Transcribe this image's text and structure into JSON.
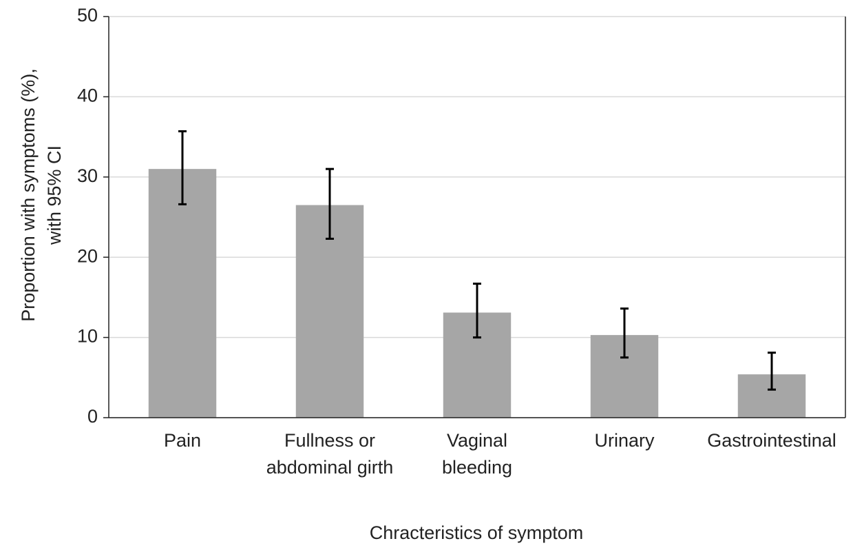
{
  "chart_data": {
    "type": "bar",
    "x_label": "Chracteristics of symptom",
    "y_label": [
      "Proportion with symptoms (%),",
      "with 95% CI"
    ],
    "categories": [
      "Pain",
      "Fullness or abdominal girth",
      "Vaginal bleeding",
      "Urinary",
      "Gastrointestinal"
    ],
    "values": [
      31,
      26.5,
      13.1,
      10.3,
      5.4
    ],
    "ci_lower": [
      26.6,
      22.3,
      10,
      7.5,
      3.5
    ],
    "ci_upper": [
      35.7,
      31,
      16.7,
      13.6,
      8.1
    ],
    "color": "#a6a6a6",
    "ylim": [
      0,
      50
    ],
    "yticks": [
      0,
      10,
      20,
      30,
      40,
      50
    ],
    "grid": true
  }
}
